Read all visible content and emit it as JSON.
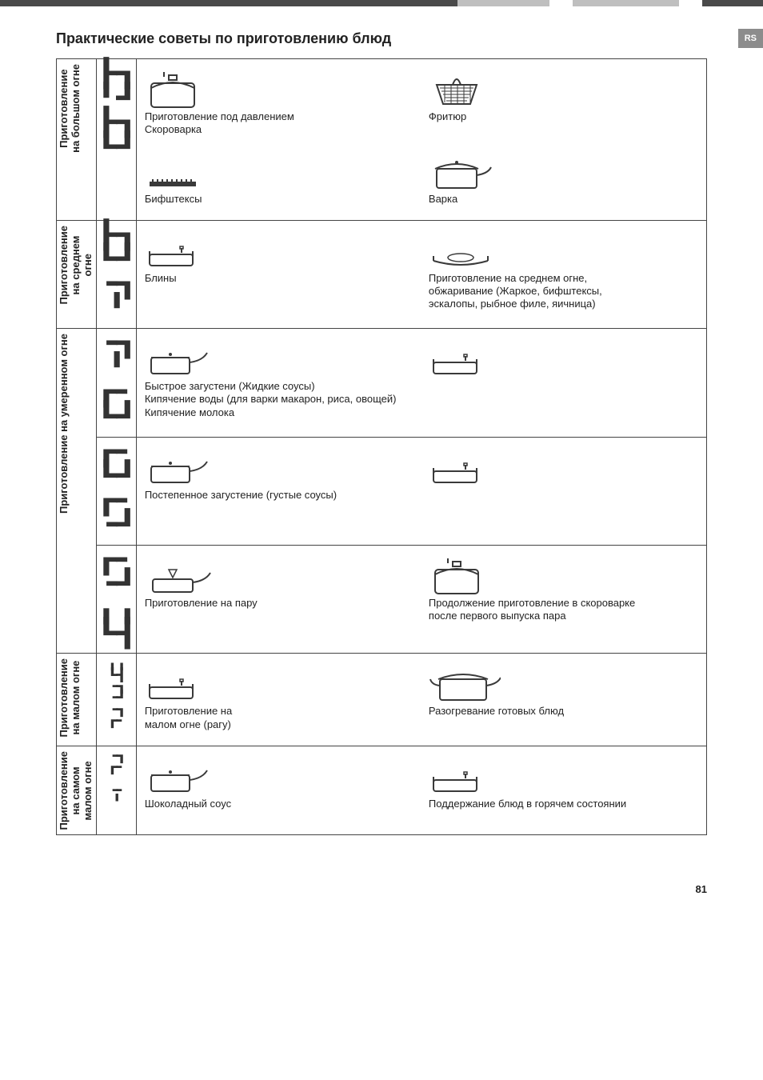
{
  "sideTab": "RS",
  "heading": "Практические советы по приготовлению блюд",
  "pageNumber": "81",
  "rows": [
    {
      "label": "Приготовление\nна большом огне",
      "digits": [
        "┣┓",
        "╹┛",
        "┣┓",
        "┗┛"
      ],
      "digitSize": 34,
      "blocks": [
        {
          "items": [
            {
              "icon": "pressure-pot",
              "caption": "Приготовление под давлением\nСкороварка"
            },
            {
              "icon": "fry-basket",
              "caption": "Фритюр"
            }
          ]
        },
        {
          "items": [
            {
              "icon": "grill",
              "caption": "Бифштексы"
            },
            {
              "icon": "pot-lid",
              "caption": "Варка"
            }
          ]
        }
      ]
    },
    {
      "label": "Приготовление\nна среднем\nогне",
      "digits": [
        "┣┓",
        "┗┛",
        "╺┓",
        " ╹"
      ],
      "digitSize": 34,
      "blocks": [
        {
          "items": [
            {
              "icon": "pan",
              "caption": "Блины"
            },
            {
              "icon": "pan-food",
              "caption": "Приготовление на среднем огне,\nобжаривание (Жаркое, бифштексы,\nэскалопы, рыбное филе, яичница)"
            }
          ]
        }
      ]
    },
    {
      "label": "Приготовление на умеренном огне",
      "rowspan": 3,
      "subrows": [
        {
          "digits": [
            "╺┓",
            " ╹",
            "┏╸",
            "┗┛"
          ],
          "digitSize": 34,
          "blocks": [
            {
              "items": [
                {
                  "icon": "saucepan-lid",
                  "caption": "Быстрое загустени (Жидкие соусы)\nКипячение воды (для варки макарон, риса, овощей)\nКипячение молока"
                },
                {
                  "icon": "pan",
                  "caption": ""
                }
              ]
            }
          ]
        },
        {
          "digits": [
            "┏╸",
            "┗┛",
            "┏╸",
            "╺┛"
          ],
          "digitSize": 34,
          "blocks": [
            {
              "items": [
                {
                  "icon": "saucepan-lid",
                  "caption": "Постепенное загустение (густые соусы)"
                },
                {
                  "icon": "pan",
                  "caption": ""
                }
              ]
            }
          ]
        },
        {
          "digits": [
            "┏╸",
            "╺┛",
            "╻╻",
            "┗┫"
          ],
          "digitSize": 34,
          "blocks": [
            {
              "items": [
                {
                  "icon": "steamer",
                  "caption": "Приготовление на пару"
                },
                {
                  "icon": "pressure-pot",
                  "caption": "Продолжение приготовление в скороварке\nпосле первого выпуска пара"
                }
              ]
            }
          ]
        }
      ]
    },
    {
      "label": "Приготовление\nна малом огне",
      "digits": [
        "╻╻",
        "┗┫",
        "╺┓",
        "╺┛",
        "╺┓",
        "┏╸"
      ],
      "digitSize": 30,
      "blocks": [
        {
          "items": [
            {
              "icon": "pan",
              "caption": "Приготовление на\nмалом огне (рагу)"
            },
            {
              "icon": "big-pot",
              "caption": "Разогревание готовых блюд"
            }
          ]
        }
      ]
    },
    {
      "label": "Приготовление\nна самом\nмалом огне",
      "digits": [
        "╺┓",
        "┏╸",
        "",
        "╺╸",
        "╹"
      ],
      "digitSize": 30,
      "blocks": [
        {
          "items": [
            {
              "icon": "saucepan-lid",
              "caption": "Шоколадный соус"
            },
            {
              "icon": "pan",
              "caption": "Поддержание блюд в горячем состоянии"
            }
          ]
        }
      ]
    }
  ],
  "colors": {
    "text": "#222222",
    "border": "#444444",
    "iconStroke": "#3a3a3a"
  }
}
